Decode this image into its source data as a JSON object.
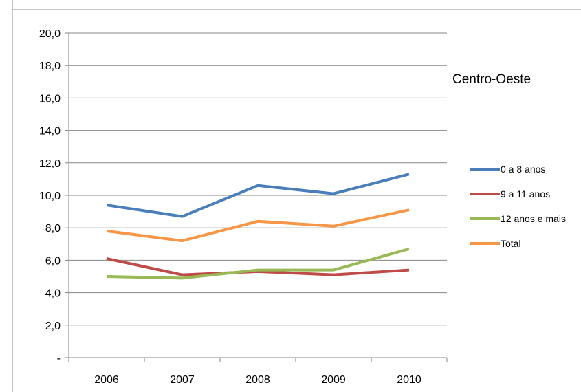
{
  "chart_data": {
    "type": "line",
    "title": "Centro-Oeste",
    "x": [
      "2006",
      "2007",
      "2008",
      "2009",
      "2010"
    ],
    "y_ticks": [
      "-",
      "2,0",
      "4,0",
      "6,0",
      "8,0",
      "10,0",
      "12,0",
      "14,0",
      "16,0",
      "18,0",
      "20,0"
    ],
    "ylim": [
      0,
      20
    ],
    "grid": true,
    "legend_position": "right",
    "series": [
      {
        "name": "0 a 8 anos",
        "color": "#4a7ebb",
        "values": [
          9.4,
          8.7,
          10.6,
          10.1,
          11.3
        ]
      },
      {
        "name": "9 a 11 anos",
        "color": "#be4b48",
        "values": [
          6.1,
          5.1,
          5.3,
          5.1,
          5.4
        ]
      },
      {
        "name": "12 anos e mais",
        "color": "#98b954",
        "values": [
          5.0,
          4.9,
          5.4,
          5.4,
          6.7
        ]
      },
      {
        "name": "Total",
        "color": "#f79646",
        "values": [
          7.8,
          7.2,
          8.4,
          8.1,
          9.1
        ]
      }
    ]
  }
}
